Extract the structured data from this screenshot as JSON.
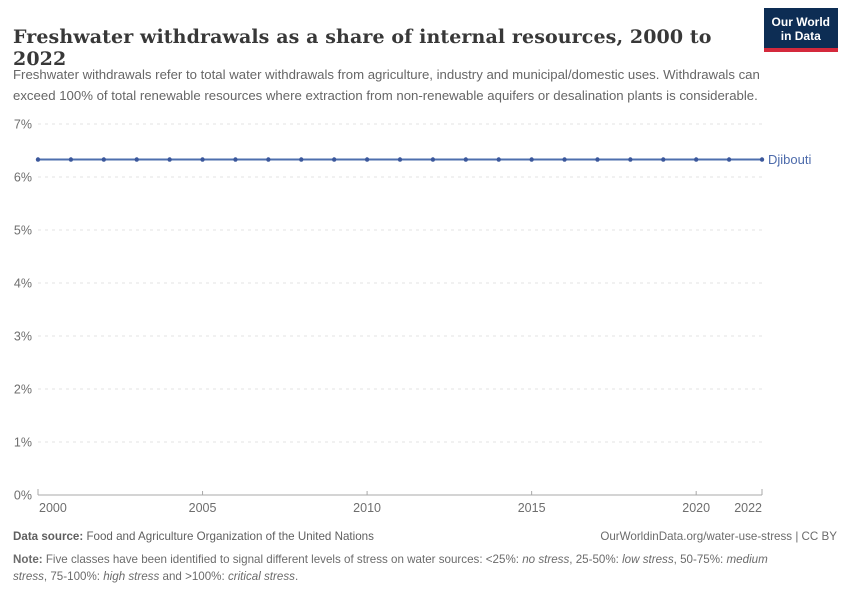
{
  "header": {
    "title": "Freshwater withdrawals as a share of internal resources, 2000 to 2022",
    "subtitle": "Freshwater withdrawals refer to total water withdrawals from agriculture, industry and municipal/domestic uses. Withdrawals can exceed 100% of total renewable resources where extraction from non-renewable aquifers or desalination plants is considerable.",
    "logo": {
      "line1": "Our World",
      "line2": "in Data",
      "bg_color": "#0d2d54",
      "accent_color": "#d4293c"
    }
  },
  "chart_data": {
    "type": "line",
    "title": "Freshwater withdrawals as a share of internal resources, 2000 to 2022",
    "xlabel": "",
    "ylabel": "",
    "ylim": [
      0,
      7
    ],
    "grid": "horizontal-dashed",
    "legend_position": "line-end-label",
    "x": [
      2000,
      2001,
      2002,
      2003,
      2004,
      2005,
      2006,
      2007,
      2008,
      2009,
      2010,
      2011,
      2012,
      2013,
      2014,
      2015,
      2016,
      2017,
      2018,
      2019,
      2020,
      2021,
      2022
    ],
    "series": [
      {
        "name": "Djibouti",
        "values": [
          6.33,
          6.33,
          6.33,
          6.33,
          6.33,
          6.33,
          6.33,
          6.33,
          6.33,
          6.33,
          6.33,
          6.33,
          6.33,
          6.33,
          6.33,
          6.33,
          6.33,
          6.33,
          6.33,
          6.33,
          6.33,
          6.33,
          6.33
        ],
        "color": "#4e6fae",
        "point_color": "#3a579b",
        "label_color": "#4d6bab"
      }
    ],
    "yticks": [
      {
        "value": 0,
        "label": "0%"
      },
      {
        "value": 1,
        "label": "1%"
      },
      {
        "value": 2,
        "label": "2%"
      },
      {
        "value": 3,
        "label": "3%"
      },
      {
        "value": 4,
        "label": "4%"
      },
      {
        "value": 5,
        "label": "5%"
      },
      {
        "value": 6,
        "label": "6%"
      },
      {
        "value": 7,
        "label": "7%"
      }
    ],
    "xticks": [
      2000,
      2005,
      2010,
      2015,
      2020,
      2022
    ],
    "colors": {
      "gridline": "#e3e3e3",
      "axis": "#a8a8a8",
      "tick_label": "#6e6e6e"
    }
  },
  "footer": {
    "source_label": "Data source:",
    "source_text": " Food and Agriculture Organization of the United Nations",
    "link_text": "OurWorldinData.org/water-use-stress | CC BY",
    "note_segments": [
      {
        "text": "Note:",
        "bold": true
      },
      {
        "text": " Five classes have been identified to signal different levels of stress on water sources: <25%: "
      },
      {
        "text": "no stress",
        "italic": true
      },
      {
        "text": ", 25-50%: "
      },
      {
        "text": "low stress",
        "italic": true
      },
      {
        "text": ", 50-75%: "
      },
      {
        "text": "medium stress",
        "italic": true
      },
      {
        "text": ", 75-100%: "
      },
      {
        "text": "high stress",
        "italic": true
      },
      {
        "text": " and >100%: "
      },
      {
        "text": "critical stress",
        "italic": true
      },
      {
        "text": "."
      }
    ]
  }
}
